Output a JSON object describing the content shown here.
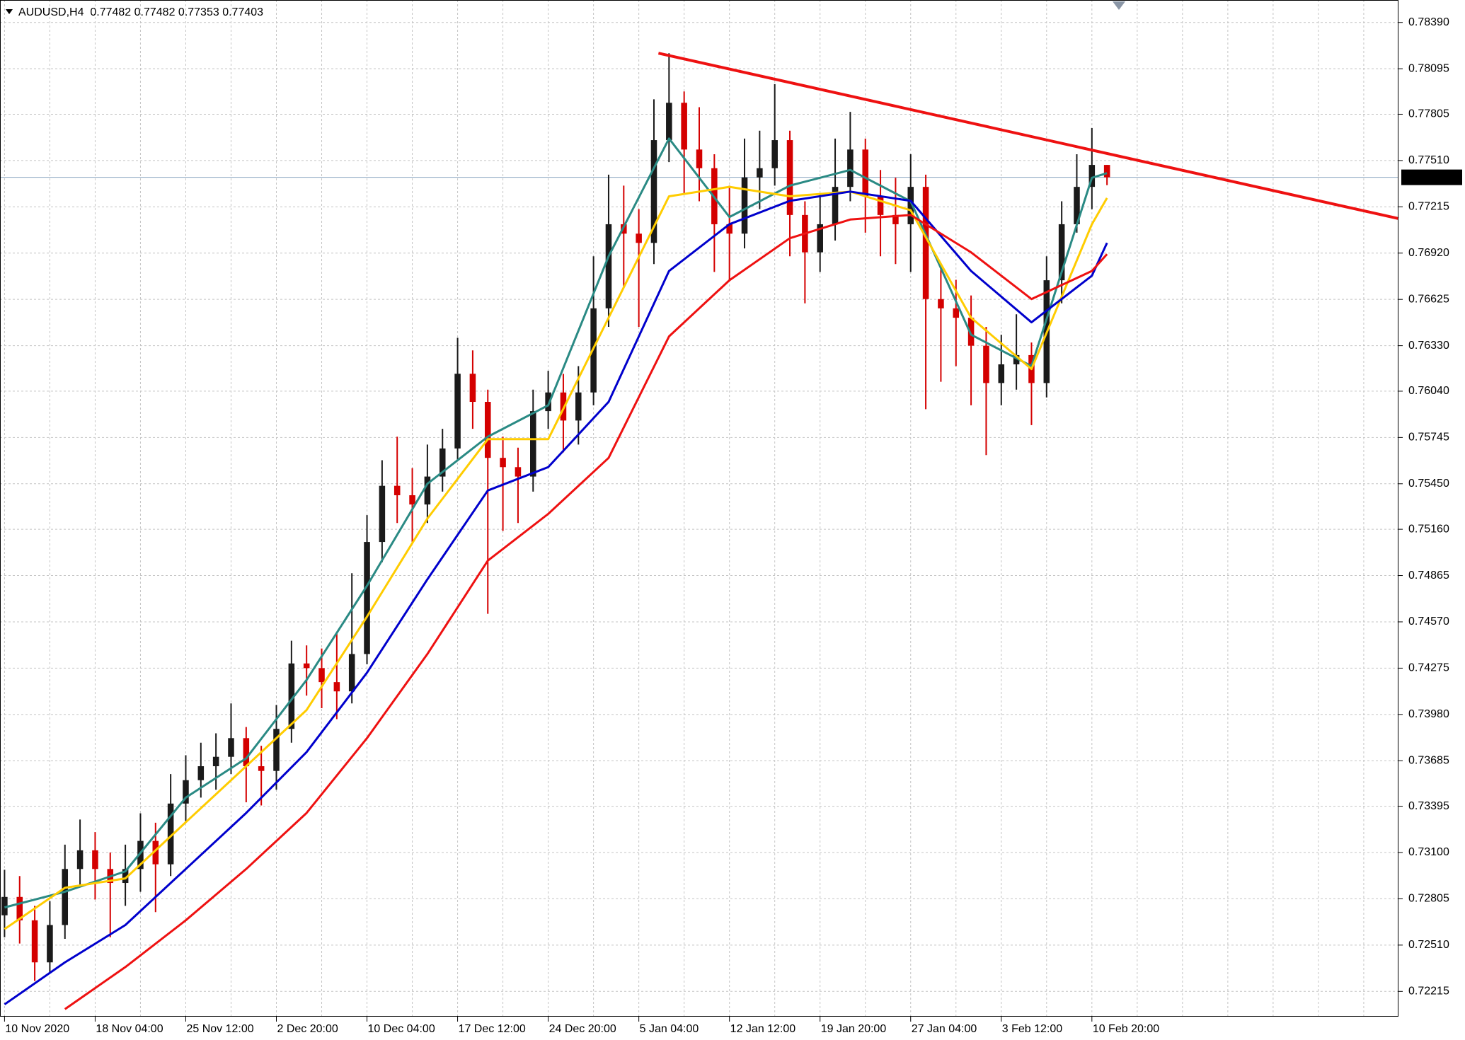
{
  "chart_data": {
    "type": "candlestick",
    "title": "AUDUSD,H4  0.77482 0.77482 0.77353 0.77403",
    "categories": [
      "10 Nov 2020",
      null,
      null,
      null,
      null,
      null,
      "18 Nov 04:00",
      null,
      null,
      null,
      null,
      null,
      "25 Nov 12:00",
      null,
      null,
      null,
      null,
      null,
      "2 Dec 20:00",
      null,
      null,
      null,
      null,
      null,
      "10 Dec 04:00",
      null,
      null,
      null,
      null,
      null,
      "17 Dec 12:00",
      null,
      null,
      null,
      null,
      null,
      "24 Dec 20:00",
      null,
      null,
      null,
      null,
      null,
      "5 Jan 04:00",
      null,
      null,
      null,
      null,
      null,
      "12 Jan 12:00",
      null,
      null,
      null,
      null,
      null,
      "19 Jan 20:00",
      null,
      null,
      null,
      null,
      null,
      "27 Jan 04:00",
      null,
      null,
      null,
      null,
      null,
      "3 Feb 12:00",
      null,
      null,
      null,
      null,
      null,
      "10 Feb 20:00",
      null
    ],
    "open": [
      0.727,
      0.72817,
      0.72668,
      0.724,
      0.72638,
      0.72995,
      0.73114,
      0.72995,
      0.72906,
      0.72995,
      0.73174,
      0.73025,
      0.73412,
      0.73561,
      0.7365,
      0.7371,
      0.73829,
      0.7365,
      0.7362,
      0.73888,
      0.74305,
      0.74275,
      0.74186,
      0.74127,
      0.74365,
      0.75079,
      0.75437,
      0.75377,
      0.75318,
      0.75496,
      0.75675,
      0.76151,
      0.75972,
      0.75615,
      0.75556,
      0.75496,
      0.75913,
      0.76032,
      0.75853,
      0.76032,
      0.76568,
      0.77104,
      0.77044,
      0.76985,
      0.7764,
      0.77878,
      0.7758,
      0.77461,
      0.77104,
      0.77044,
      0.77402,
      0.77461,
      0.7764,
      0.77163,
      0.76925,
      0.77104,
      0.77342,
      0.7758,
      0.77282,
      0.77163,
      0.77104,
      0.77342,
      0.76627,
      0.76568,
      0.76508,
      0.7633,
      0.76092,
      0.76211,
      0.7627,
      0.76092,
      0.76747,
      0.77104,
      0.77342,
      0.77482
    ],
    "high": [
      0.7299,
      0.7295,
      0.7276,
      0.7279,
      0.7315,
      0.7331,
      0.7323,
      0.731,
      0.7315,
      0.7335,
      0.7329,
      0.736,
      0.7372,
      0.738,
      0.7386,
      0.7405,
      0.739,
      0.7378,
      0.7404,
      0.7445,
      0.7442,
      0.744,
      0.745,
      0.7488,
      0.7525,
      0.756,
      0.7575,
      0.7555,
      0.757,
      0.758,
      0.7638,
      0.763,
      0.7605,
      0.7575,
      0.7568,
      0.7605,
      0.7617,
      0.7615,
      0.762,
      0.769,
      0.7742,
      0.7735,
      0.772,
      0.779,
      0.78194,
      0.7795,
      0.7785,
      0.7755,
      0.7735,
      0.7765,
      0.777,
      0.77997,
      0.777,
      0.7725,
      0.773,
      0.7765,
      0.7782,
      0.7765,
      0.7745,
      0.774,
      0.7755,
      0.7742,
      0.7685,
      0.7675,
      0.7665,
      0.7645,
      0.764,
      0.7653,
      0.7635,
      0.769,
      0.7725,
      0.7755,
      0.77717,
      0.77482
    ],
    "low": [
      0.7256,
      0.7252,
      0.72281,
      0.7233,
      0.7255,
      0.7288,
      0.728,
      0.7256,
      0.7276,
      0.7285,
      0.7272,
      0.7295,
      0.733,
      0.7345,
      0.735,
      0.736,
      0.7342,
      0.734,
      0.735,
      0.738,
      0.741,
      0.7402,
      0.7395,
      0.7405,
      0.743,
      0.7495,
      0.752,
      0.7508,
      0.752,
      0.754,
      0.756,
      0.758,
      0.74621,
      0.7515,
      0.752,
      0.754,
      0.758,
      0.7565,
      0.757,
      0.7595,
      0.7645,
      0.767,
      0.7645,
      0.7685,
      0.775,
      0.773,
      0.7725,
      0.768,
      0.7675,
      0.7695,
      0.772,
      0.7735,
      0.769,
      0.766,
      0.768,
      0.77,
      0.7725,
      0.7705,
      0.769,
      0.7685,
      0.768,
      0.75925,
      0.761,
      0.762,
      0.7595,
      0.75633,
      0.7595,
      0.7605,
      0.75824,
      0.76,
      0.766,
      0.7705,
      0.772,
      0.77353
    ],
    "close": [
      0.72817,
      0.72668,
      0.724,
      0.72638,
      0.72995,
      0.73114,
      0.72995,
      0.72906,
      0.72995,
      0.73174,
      0.73025,
      0.73412,
      0.73561,
      0.7365,
      0.7371,
      0.73829,
      0.7365,
      0.7362,
      0.73888,
      0.74305,
      0.74275,
      0.74186,
      0.74127,
      0.74365,
      0.75079,
      0.75437,
      0.75377,
      0.75318,
      0.75496,
      0.75675,
      0.76151,
      0.75972,
      0.75615,
      0.75556,
      0.75496,
      0.75913,
      0.76032,
      0.75853,
      0.76032,
      0.76568,
      0.77104,
      0.77044,
      0.76985,
      0.7764,
      0.77878,
      0.7758,
      0.77461,
      0.77104,
      0.77044,
      0.77402,
      0.77461,
      0.7764,
      0.77163,
      0.76925,
      0.77104,
      0.77342,
      0.7758,
      0.77282,
      0.77163,
      0.77104,
      0.77342,
      0.76627,
      0.76568,
      0.76508,
      0.7633,
      0.76092,
      0.76211,
      0.7627,
      0.76092,
      0.76747,
      0.77104,
      0.77342,
      0.77482,
      0.77403
    ],
    "up_color": "#1a1a1a",
    "down_color": "#d40000",
    "series": [
      {
        "color": "#2a8a84",
        "x": [
          0,
          4,
          8,
          12,
          16,
          20,
          24,
          28,
          32,
          36,
          40,
          44,
          48,
          52,
          56,
          60,
          64,
          68,
          72,
          73
        ],
        "values": [
          0.7275,
          0.7285,
          0.7298,
          0.7345,
          0.737,
          0.742,
          0.748,
          0.7545,
          0.7575,
          0.7595,
          0.769,
          0.7765,
          0.7715,
          0.7735,
          0.7745,
          0.7725,
          0.764,
          0.762,
          0.774,
          0.7743
        ]
      },
      {
        "color": "#ffcc00",
        "x": [
          0,
          4,
          8,
          12,
          16,
          20,
          24,
          28,
          32,
          36,
          40,
          44,
          48,
          52,
          56,
          60,
          64,
          68,
          72,
          73
        ],
        "values": [
          0.72612,
          0.72875,
          0.72935,
          0.73293,
          0.7365,
          0.74008,
          0.74603,
          0.75228,
          0.75734,
          0.75734,
          0.76508,
          0.77282,
          0.77342,
          0.77282,
          0.77312,
          0.77193,
          0.76508,
          0.76181,
          0.77104,
          0.77271
        ]
      },
      {
        "color": "#0000cc",
        "x": [
          0,
          4,
          8,
          12,
          16,
          20,
          24,
          28,
          32,
          36,
          40,
          44,
          48,
          52,
          56,
          60,
          64,
          68,
          72,
          73
        ],
        "values": [
          0.72132,
          0.724,
          0.72638,
          0.72995,
          0.73352,
          0.7374,
          0.74246,
          0.74841,
          0.75407,
          0.75556,
          0.75972,
          0.76806,
          0.77104,
          0.77253,
          0.77312,
          0.77253,
          0.76806,
          0.76479,
          0.76776,
          0.76985
        ]
      },
      {
        "color": "#ee1111",
        "x": [
          4,
          8,
          12,
          16,
          20,
          24,
          28,
          32,
          36,
          40,
          44,
          48,
          52,
          56,
          60,
          64,
          68,
          72,
          73
        ],
        "values": [
          0.72102,
          0.7237,
          0.72668,
          0.72995,
          0.73352,
          0.73829,
          0.74365,
          0.7496,
          0.75258,
          0.75615,
          0.76389,
          0.76747,
          0.77015,
          0.77134,
          0.77163,
          0.76925,
          0.76627,
          0.76806,
          0.76913
        ]
      }
    ],
    "trendline": {
      "color": "#ee1111",
      "x": [
        43.3,
        92.3
      ],
      "values": [
        0.78194,
        0.7714
      ]
    },
    "current_price": 0.77403,
    "xlim": [
      -0.3,
      92.3
    ],
    "ylim": [
      0.72054,
      0.78533
    ],
    "yticks": [
      {
        "value": 0.7839,
        "label": "0.78390"
      },
      0.78095,
      0.77805,
      {
        "value": 0.7751,
        "label": "0.77510"
      },
      0.77215,
      {
        "value": 0.7692,
        "label": "0.76920"
      },
      0.76625,
      {
        "value": 0.7633,
        "label": "0.76330"
      },
      {
        "value": 0.7604,
        "label": "0.76040"
      },
      0.75745,
      {
        "value": 0.7545,
        "label": "0.75450"
      },
      {
        "value": 0.7516,
        "label": "0.75160"
      },
      0.74865,
      {
        "value": 0.7457,
        "label": "0.74570"
      },
      0.74275,
      {
        "value": 0.7398,
        "label": "0.73980"
      },
      0.73685,
      0.73395,
      {
        "value": 0.731,
        "label": "0.73100"
      },
      0.72805,
      {
        "value": 0.7251,
        "label": "0.72510"
      },
      0.72215
    ],
    "grid": true
  }
}
